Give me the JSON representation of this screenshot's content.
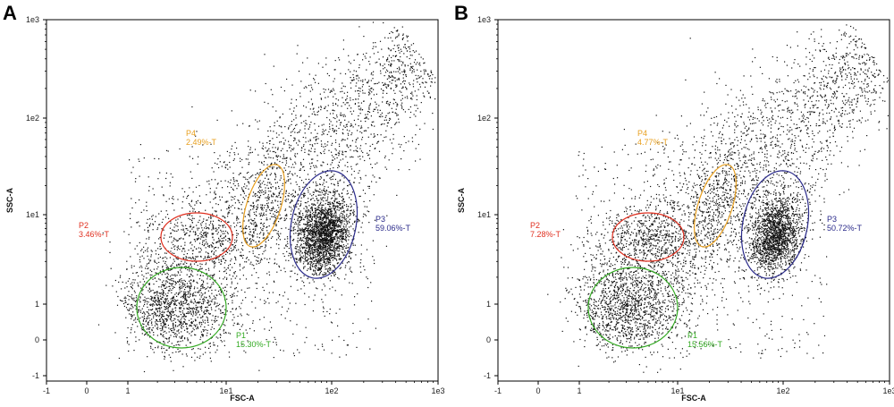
{
  "chart_data": [
    {
      "type": "scatter",
      "panel_label": "A",
      "xlabel": "FSC-A",
      "ylabel": "SSC-A",
      "x_ticks": [
        "-1",
        "0",
        "1",
        "1e1",
        "1e2",
        "1e3"
      ],
      "y_ticks": [
        "-1",
        "0",
        "1",
        "1e1",
        "1e2",
        "1e3"
      ],
      "xlim": [
        -1,
        1000
      ],
      "ylim": [
        -1,
        1000
      ],
      "scale": "biexponential",
      "gates": [
        {
          "name": "P1",
          "percent": "15.30%-T",
          "color": "#33aa22",
          "cx": 4.2,
          "cy": 0.7
        },
        {
          "name": "P2",
          "percent": "3.46%-T",
          "color": "#e03020",
          "cx": 5,
          "cy": 6
        },
        {
          "name": "P3",
          "percent": "59.06%-T",
          "color": "#2a2a8a",
          "cx": 80,
          "cy": 6
        },
        {
          "name": "P4",
          "percent": "2.49%-T",
          "color": "#e8a020",
          "cx": 22,
          "cy": 8
        }
      ]
    },
    {
      "type": "scatter",
      "panel_label": "B",
      "xlabel": "FSC-A",
      "ylabel": "SSC-A",
      "x_ticks": [
        "-1",
        "0",
        "1",
        "1e1",
        "1e2",
        "1e3"
      ],
      "y_ticks": [
        "-1",
        "0",
        "1",
        "1e1",
        "1e2",
        "1e3"
      ],
      "xlim": [
        -1,
        1000
      ],
      "ylim": [
        -1,
        1000
      ],
      "scale": "biexponential",
      "gates": [
        {
          "name": "P1",
          "percent": "15.56%-T",
          "color": "#33aa22",
          "cx": 4.2,
          "cy": 0.7
        },
        {
          "name": "P2",
          "percent": "7.28%-T",
          "color": "#e03020",
          "cx": 5,
          "cy": 6
        },
        {
          "name": "P3",
          "percent": "50.72%-T",
          "color": "#2a2a8a",
          "cx": 80,
          "cy": 6
        },
        {
          "name": "P4",
          "percent": "4.77%-T",
          "color": "#e8a020",
          "cx": 22,
          "cy": 8
        }
      ]
    }
  ]
}
